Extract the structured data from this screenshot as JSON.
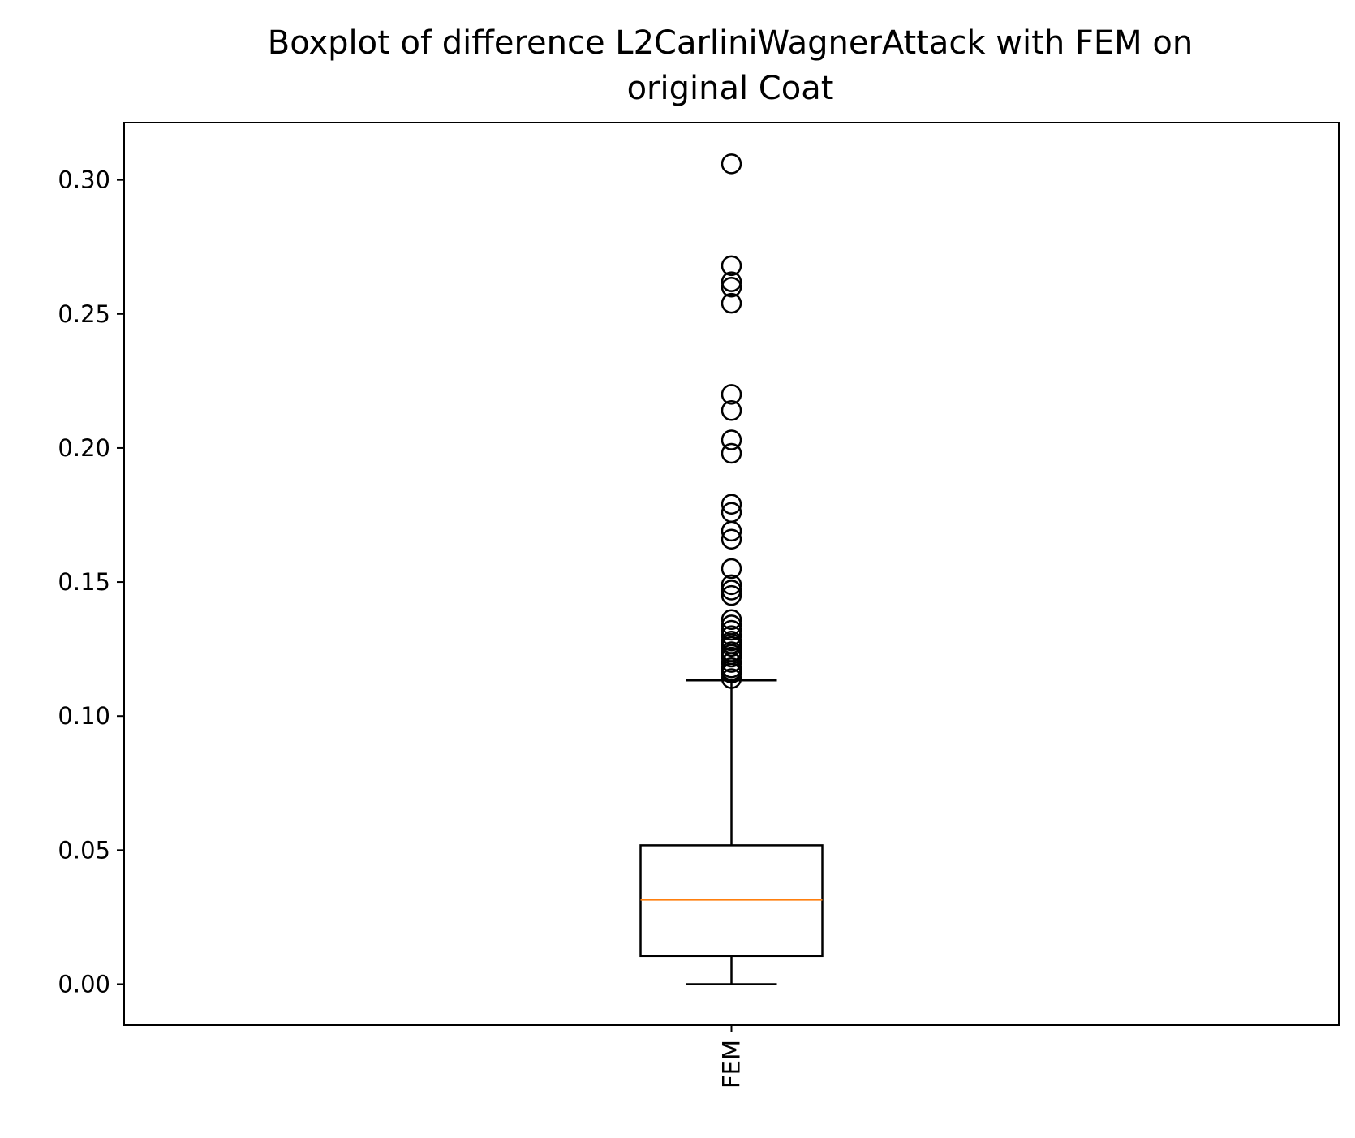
{
  "chart_data": {
    "type": "boxplot",
    "title_line1": "Boxplot of difference L2CarliniWagnerAttack with FEM on",
    "title_line2": "original Coat",
    "xlabel": "",
    "ylabel": "",
    "categories": [
      "FEM"
    ],
    "ylim": [
      -0.0153,
      0.3214
    ],
    "y_ticks": [
      "0.00",
      "0.05",
      "0.10",
      "0.15",
      "0.20",
      "0.25",
      "0.30"
    ],
    "y_tick_values": [
      0.0,
      0.05,
      0.1,
      0.15,
      0.2,
      0.25,
      0.3
    ],
    "grid": false,
    "boxes": [
      {
        "name": "FEM",
        "whisker_low": 0.0,
        "q1": 0.0105,
        "median": 0.0315,
        "q3": 0.0518,
        "whisker_high": 0.1133,
        "outliers": [
          0.306,
          0.268,
          0.262,
          0.26,
          0.254,
          0.22,
          0.214,
          0.203,
          0.198,
          0.179,
          0.176,
          0.169,
          0.166,
          0.155,
          0.149,
          0.147,
          0.145,
          0.136,
          0.134,
          0.132,
          0.13,
          0.128,
          0.127,
          0.126,
          0.124,
          0.123,
          0.122,
          0.12,
          0.118,
          0.117,
          0.116,
          0.114
        ]
      }
    ],
    "colors": {
      "box": "#000000",
      "median": "#ff7f0e",
      "outlier": "#000000"
    }
  }
}
